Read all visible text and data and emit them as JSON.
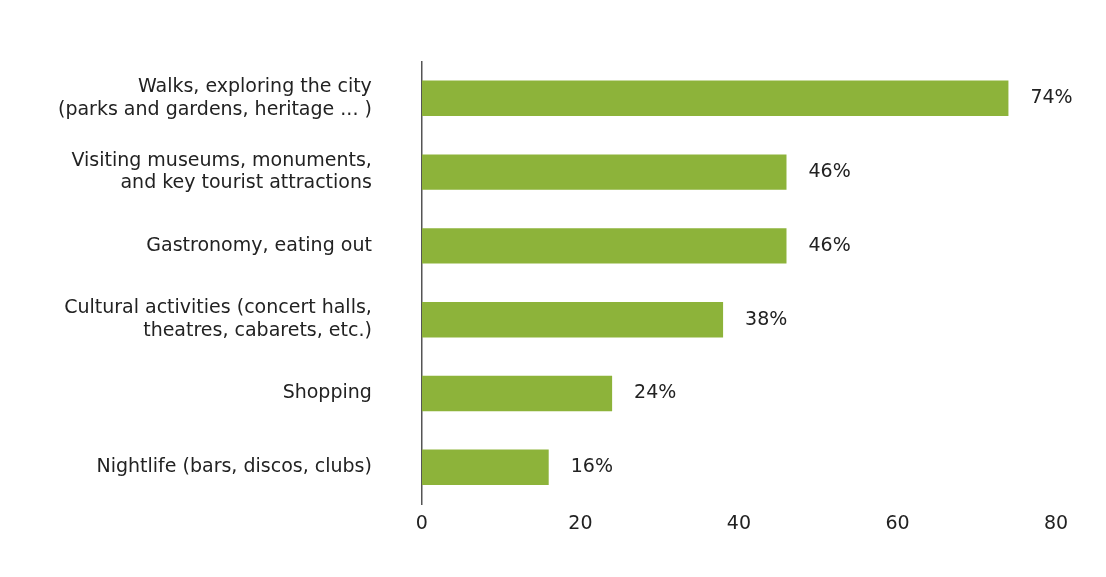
{
  "chart_data": {
    "type": "bar",
    "orientation": "horizontal",
    "categories": [
      "Walks, exploring the city\n(parks and gardens, heritage ... )",
      "Visiting museums, monuments,\nand key tourist attractions",
      "Gastronomy, eating out",
      "Cultural activities (concert halls,\ntheatres, cabarets, etc.)",
      "Shopping",
      "Nightlife (bars, discos, clubs)"
    ],
    "values": [
      74,
      46,
      46,
      38,
      24,
      16
    ],
    "value_labels": [
      "74%",
      "46%",
      "46%",
      "38%",
      "24%",
      "16%"
    ],
    "color": "#8db33a",
    "xlim": [
      0,
      80
    ],
    "xticks": [
      0,
      20,
      40,
      60,
      80
    ],
    "grid": false,
    "legend": false
  }
}
